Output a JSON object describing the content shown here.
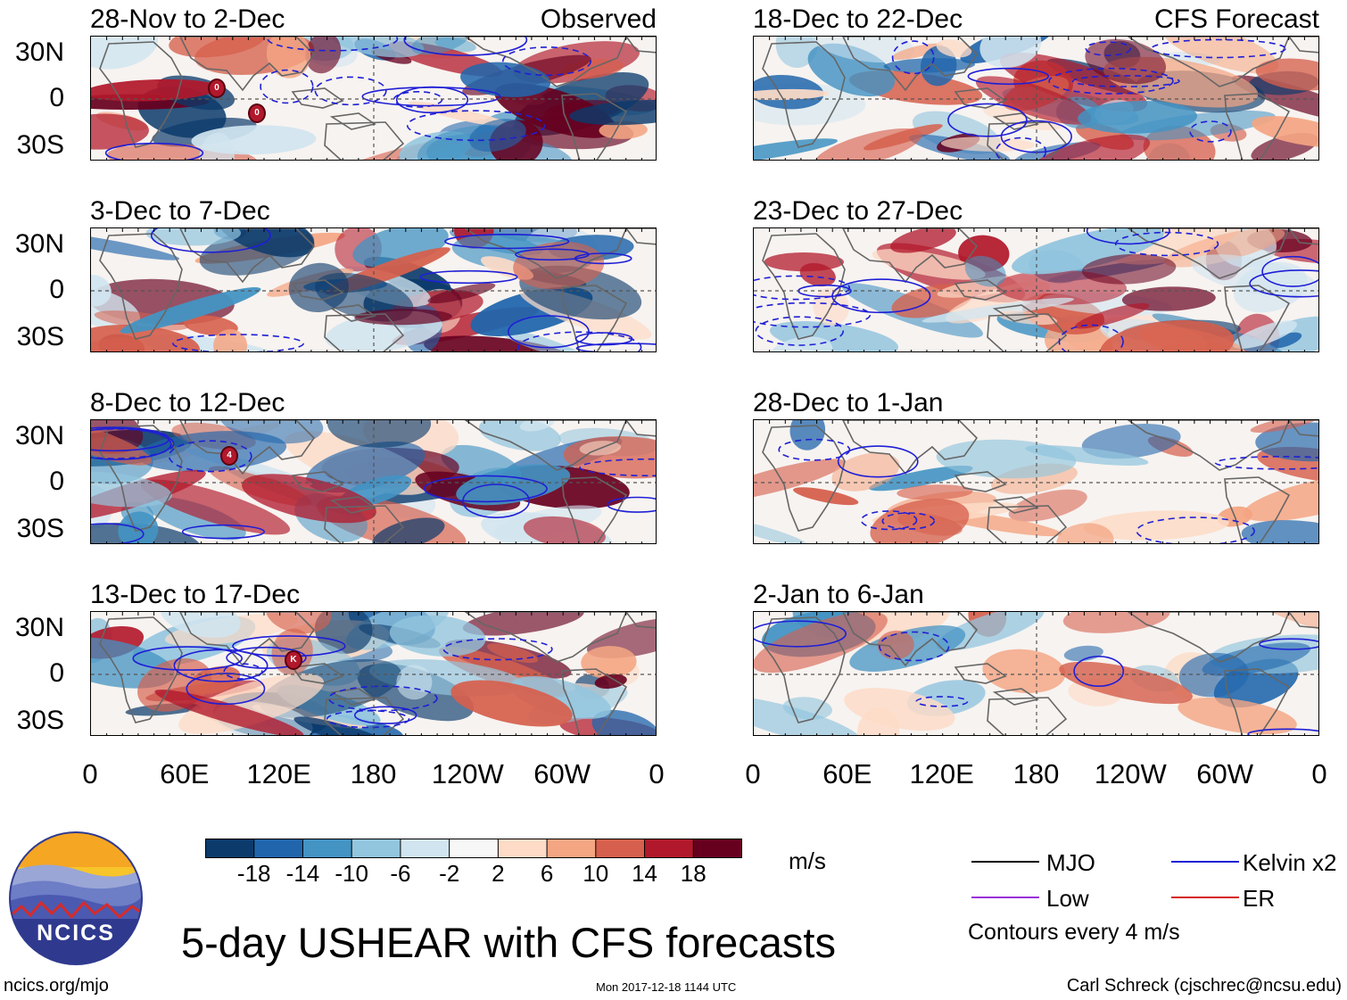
{
  "panels": [
    {
      "id": "p1",
      "title": "28-Nov to 2-Dec",
      "tag": "Observed",
      "col": 0,
      "row": 0,
      "storms": [
        "0",
        "0"
      ]
    },
    {
      "id": "p2",
      "title": "3-Dec to 7-Dec",
      "tag": "",
      "col": 0,
      "row": 1,
      "storms": []
    },
    {
      "id": "p3",
      "title": "8-Dec to 12-Dec",
      "tag": "",
      "col": 0,
      "row": 2,
      "storms": [
        "4"
      ]
    },
    {
      "id": "p4",
      "title": "13-Dec to 17-Dec",
      "tag": "",
      "col": 0,
      "row": 3,
      "storms": [
        "K"
      ]
    },
    {
      "id": "p5",
      "title": "18-Dec to 22-Dec",
      "tag": "CFS Forecast",
      "col": 1,
      "row": 0,
      "storms": []
    },
    {
      "id": "p6",
      "title": "23-Dec to 27-Dec",
      "tag": "",
      "col": 1,
      "row": 1,
      "storms": []
    },
    {
      "id": "p7",
      "title": "28-Dec to 1-Jan",
      "tag": "",
      "col": 1,
      "row": 2,
      "storms": []
    },
    {
      "id": "p8",
      "title": "2-Jan to 6-Jan",
      "tag": "",
      "col": 1,
      "row": 3,
      "storms": []
    }
  ],
  "lat_labels": [
    "30N",
    "0",
    "30S"
  ],
  "lon_labels": [
    "0",
    "60E",
    "120E",
    "180",
    "120W",
    "60W",
    "0"
  ],
  "colorbar": {
    "ticks": [
      "-18",
      "-14",
      "-10",
      "-6",
      "-2",
      "2",
      "6",
      "10",
      "14",
      "18"
    ],
    "colors": [
      "#0b3a6b",
      "#2166ac",
      "#4393c3",
      "#92c5de",
      "#d1e5f0",
      "#f7f7f7",
      "#fddbc7",
      "#f4a582",
      "#d6604d",
      "#b2182b",
      "#67001f"
    ],
    "units": "m/s"
  },
  "legend": {
    "items": [
      {
        "label": "MJO",
        "color": "#000000"
      },
      {
        "label": "Kelvin x2",
        "color": "#1f1fd6"
      },
      {
        "label": "Low",
        "color": "#9b30d9"
      },
      {
        "label": "ER",
        "color": "#d61f1f"
      }
    ],
    "note": "Contours every 4 m/s"
  },
  "logo_text": "NCICS",
  "main_title": "5-day USHEAR with CFS forecasts",
  "footer": {
    "left": "ncics.org/mjo",
    "center": "Mon 2017-12-18 1144 UTC",
    "right": "Carl Schreck (cjschrec@ncsu.edu)"
  }
}
